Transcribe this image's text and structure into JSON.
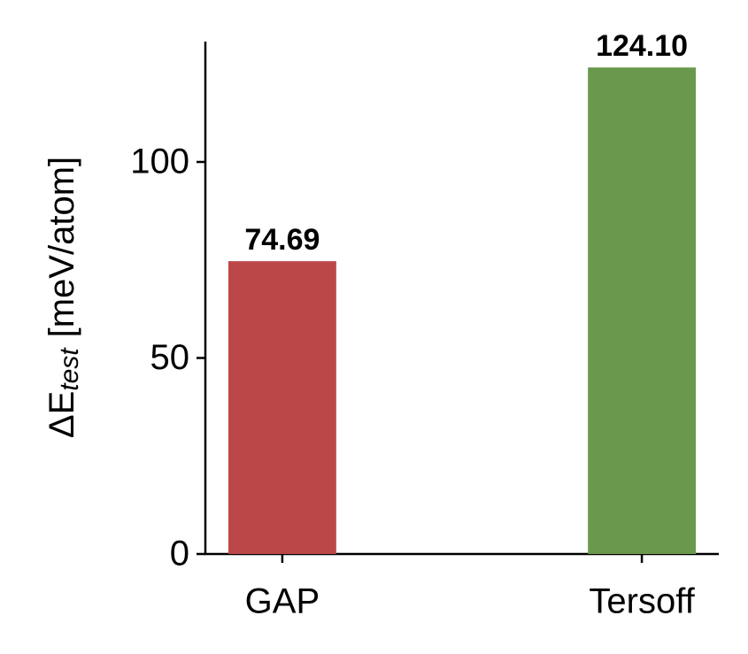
{
  "chart_data": {
    "type": "bar",
    "ylabel_parts": [
      "ΔE",
      "test",
      "[meV/atom]"
    ],
    "categories": [
      "GAP",
      "Tersoff"
    ],
    "values": [
      74.69,
      124.1
    ],
    "value_labels": [
      "74.69",
      "124.10"
    ],
    "colors": [
      "#bc4749",
      "#6a994e"
    ],
    "ylim": [
      0,
      130.7
    ],
    "yticks": [
      0,
      50,
      100
    ],
    "grid": false
  }
}
